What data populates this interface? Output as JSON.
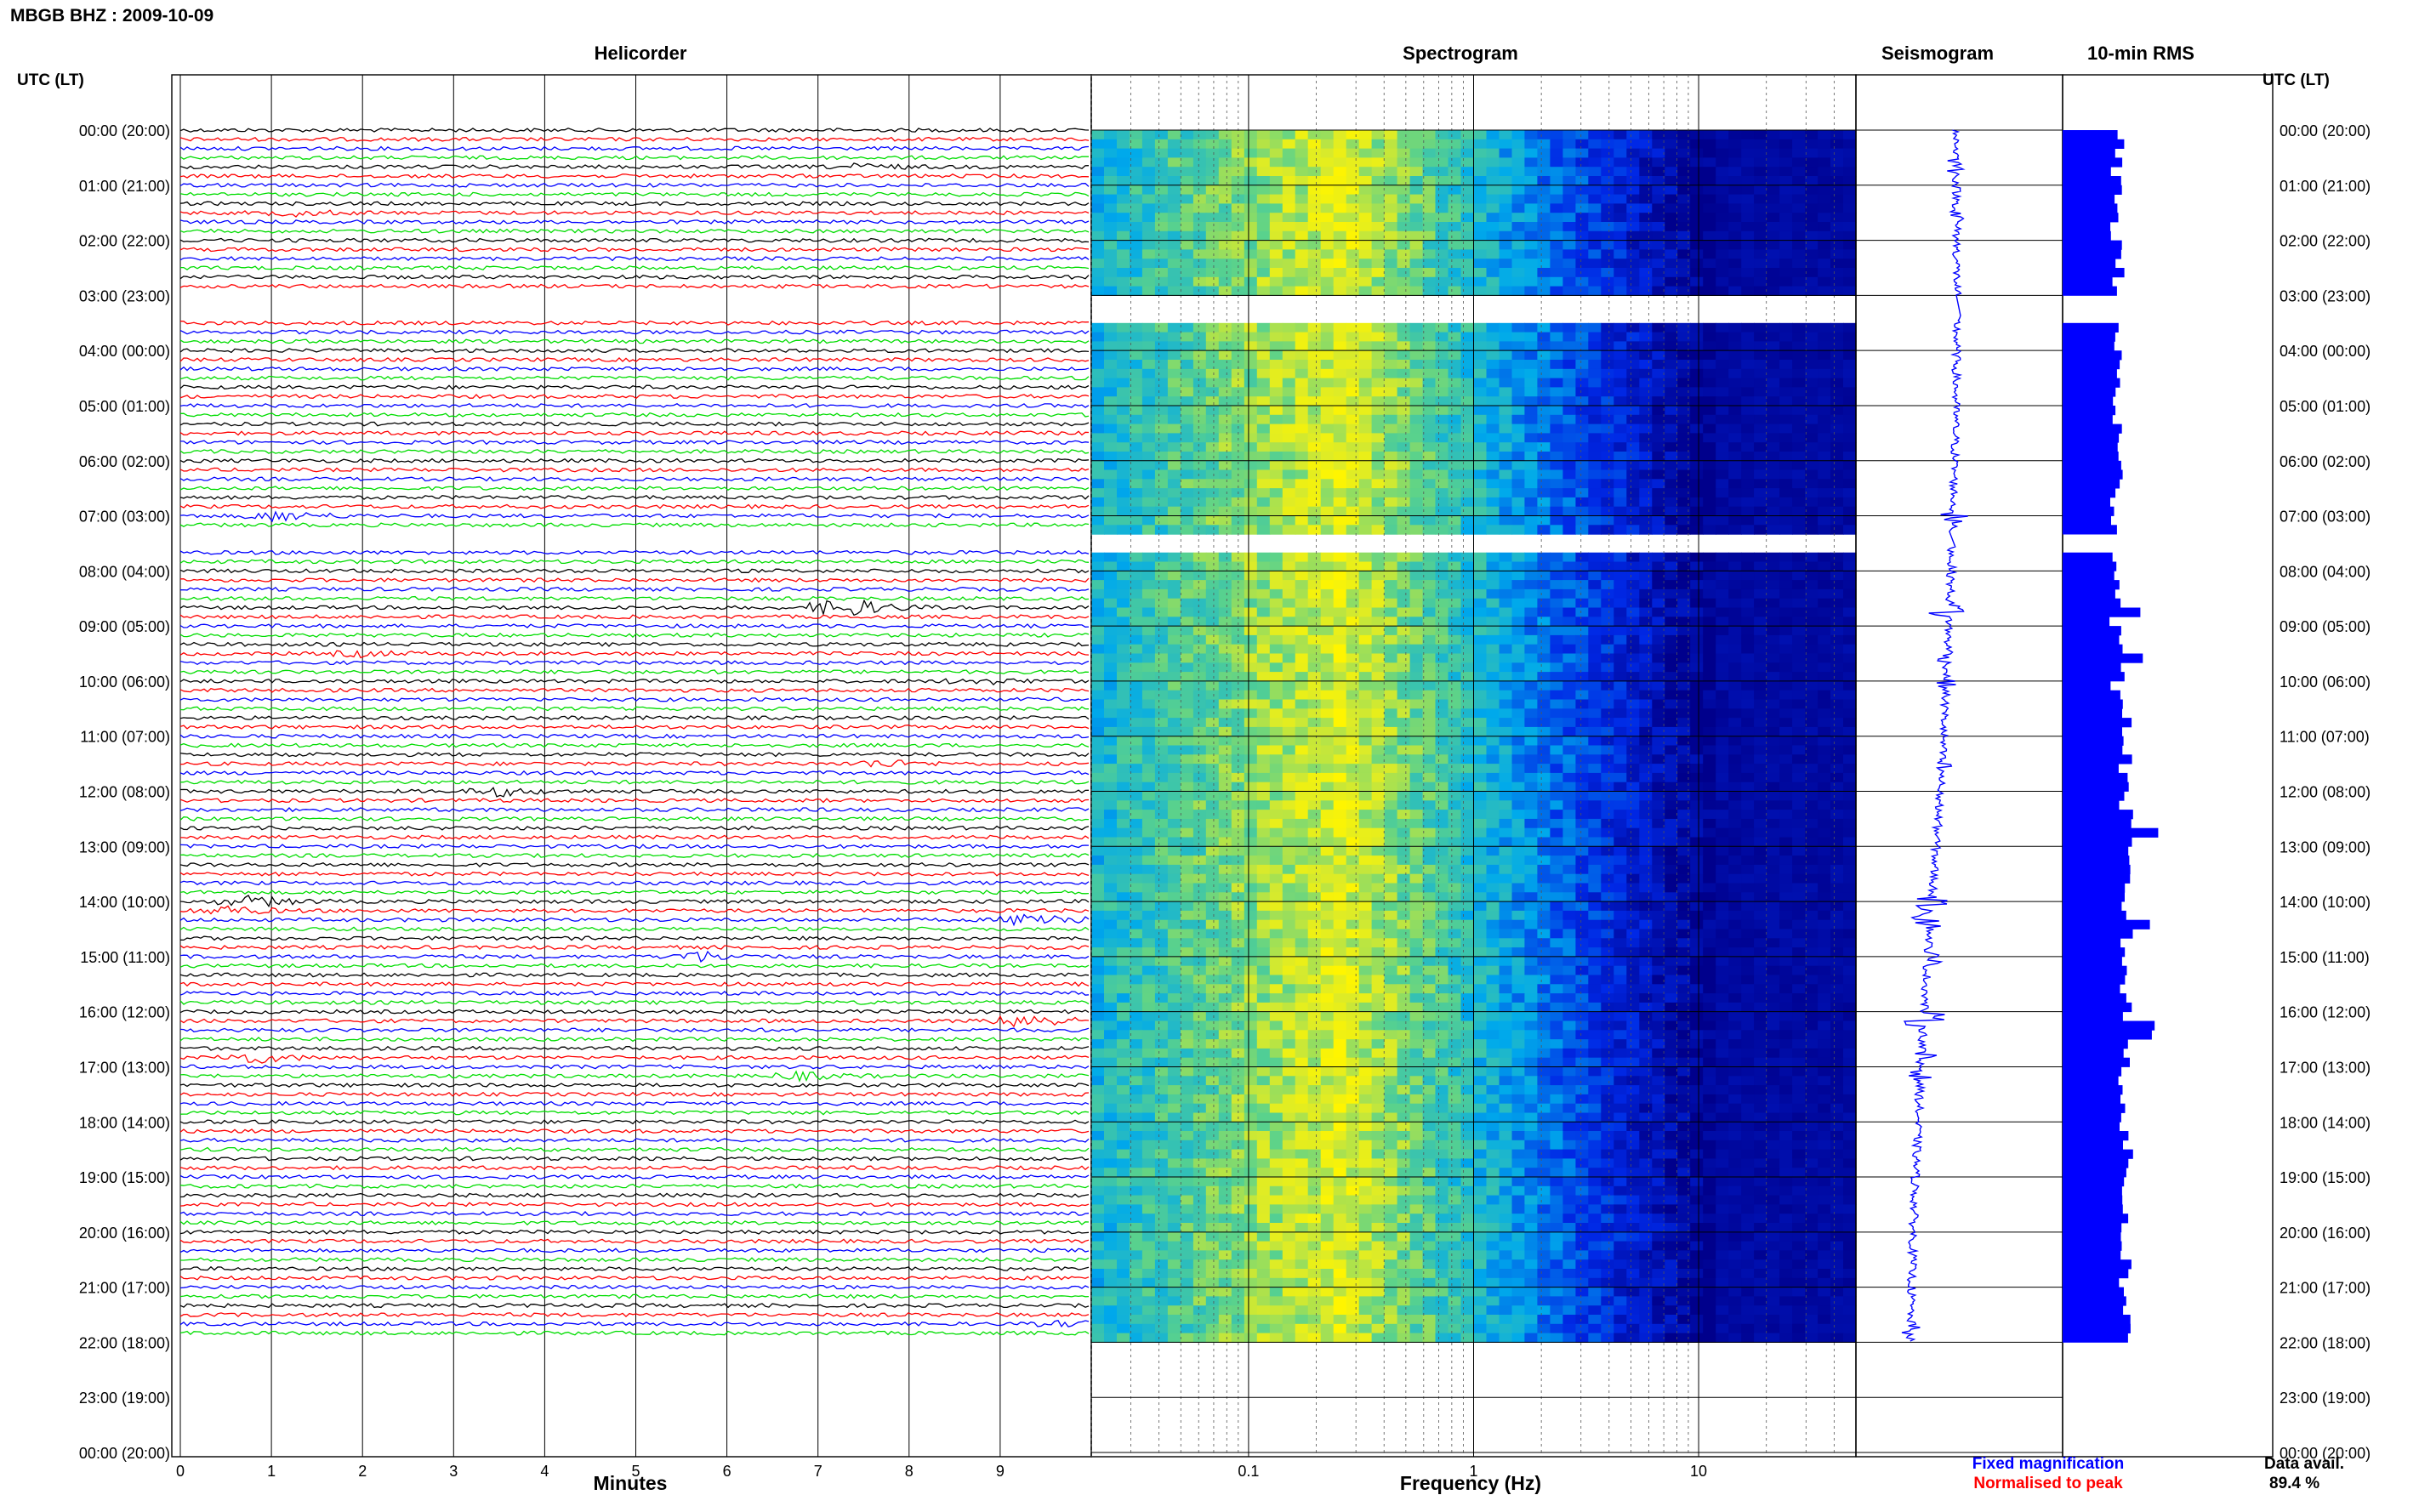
{
  "title": "MBGB BHZ : 2009-10-09",
  "chart_data": {
    "type": "heatmap",
    "panels": {
      "helicorder": "Helicorder",
      "spectrogram": "Spectrogram",
      "seismogram": "Seismogram",
      "rms": "10-min RMS"
    },
    "y_axis_label": "UTC (LT)",
    "y_ticks": [
      "00:00 (20:00)",
      "01:00 (21:00)",
      "02:00 (22:00)",
      "03:00 (23:00)",
      "04:00 (00:00)",
      "05:00 (01:00)",
      "06:00 (02:00)",
      "07:00 (03:00)",
      "08:00 (04:00)",
      "09:00 (05:00)",
      "10:00 (06:00)",
      "11:00 (07:00)",
      "12:00 (08:00)",
      "13:00 (09:00)",
      "14:00 (10:00)",
      "15:00 (11:00)",
      "16:00 (12:00)",
      "17:00 (13:00)",
      "18:00 (14:00)",
      "19:00 (15:00)",
      "20:00 (16:00)",
      "21:00 (17:00)",
      "22:00 (18:00)",
      "23:00 (19:00)",
      "00:00 (20:00)"
    ],
    "helicorder_x": {
      "label": "Minutes",
      "ticks": [
        "0",
        "1",
        "2",
        "3",
        "4",
        "5",
        "6",
        "7",
        "8",
        "9"
      ],
      "range": [
        0,
        10
      ]
    },
    "spectrogram_x": {
      "label": "Frequency (Hz)",
      "ticks": [
        "0.1",
        "1",
        "10"
      ],
      "range": [
        0.02,
        50
      ],
      "scale": "log"
    },
    "trace_colors": [
      "#000000",
      "#ff0000",
      "#0000ff",
      "#00dd00"
    ],
    "data_end_hour": 22,
    "gaps_hours": [
      [
        3.0,
        3.35
      ],
      [
        7.3,
        7.55
      ],
      [
        5.1,
        5.12
      ],
      [
        12.85,
        12.87
      ]
    ],
    "events": [
      {
        "hour": 0.6,
        "minute": 7.3,
        "amp": 3
      },
      {
        "hour": 1.5,
        "minute": 1.1,
        "amp": 3
      },
      {
        "hour": 7.0,
        "minute": 0.9,
        "amp": 6
      },
      {
        "hour": 8.65,
        "minute": 7.1,
        "amp": 12
      },
      {
        "hour": 9.5,
        "minute": 1.8,
        "amp": 3
      },
      {
        "hour": 10.0,
        "minute": 8.6,
        "amp": 3
      },
      {
        "hour": 11.45,
        "minute": 7.5,
        "amp": 4
      },
      {
        "hour": 12.0,
        "minute": 3.3,
        "amp": 5
      },
      {
        "hour": 13.95,
        "minute": 0.6,
        "amp": 6
      },
      {
        "hour": 14.1,
        "minute": 0.3,
        "amp": 5
      },
      {
        "hour": 14.3,
        "minute": 9.2,
        "amp": 9
      },
      {
        "hour": 15.0,
        "minute": 5.5,
        "amp": 6
      },
      {
        "hour": 16.1,
        "minute": 9.1,
        "amp": 9
      },
      {
        "hour": 16.8,
        "minute": 0.6,
        "amp": 6
      },
      {
        "hour": 17.1,
        "minute": 6.6,
        "amp": 4
      },
      {
        "hour": 21.7,
        "minute": 9.6,
        "amp": 3
      }
    ],
    "rms_spikes_hours": [
      8.7,
      14.3,
      16.25,
      9.55,
      12.6
    ],
    "legend": {
      "fixed": "Fixed magnification",
      "normalised": "Normalised to peak"
    },
    "legend_colors": {
      "fixed": "#0000ff",
      "normalised": "#ff0000"
    },
    "data_avail_label": "Data avail.",
    "data_avail_value": "89.4 %"
  }
}
